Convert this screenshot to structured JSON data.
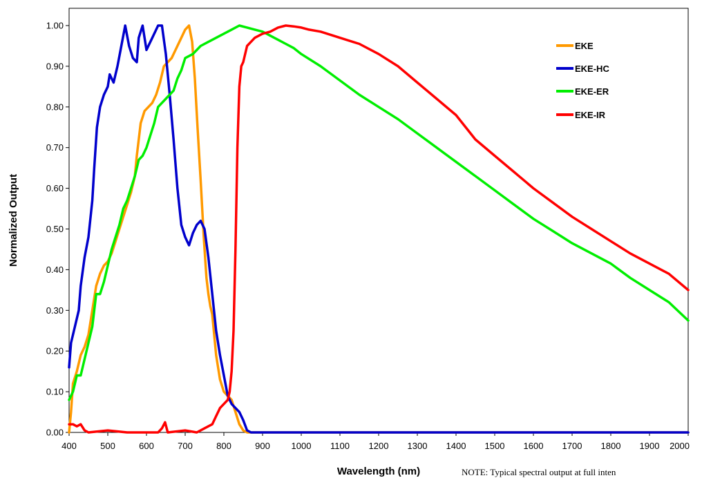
{
  "chart_data": {
    "type": "line",
    "xlabel": "Wavelength (nm)",
    "ylabel": "Normalized Output",
    "xlim": [
      400,
      2000
    ],
    "ylim": [
      0,
      1.05
    ],
    "x_ticks": [
      "400",
      "500",
      "600",
      "700",
      "800",
      "900",
      "1000",
      "1100",
      "1200",
      "1300",
      "1400",
      "1500",
      "1600",
      "1700",
      "1800",
      "1900",
      "2000"
    ],
    "y_ticks": [
      "0.00",
      "0.10",
      "0.20",
      "0.30",
      "0.40",
      "0.50",
      "0.60",
      "0.70",
      "0.80",
      "0.90",
      "1.00"
    ],
    "grid": false,
    "legend_position": "top-right",
    "series": [
      {
        "name": "EKE",
        "color": "#ff9900",
        "points": [
          [
            400,
            0.0
          ],
          [
            405,
            0.05
          ],
          [
            410,
            0.12
          ],
          [
            420,
            0.15
          ],
          [
            430,
            0.19
          ],
          [
            440,
            0.21
          ],
          [
            450,
            0.24
          ],
          [
            455,
            0.27
          ],
          [
            460,
            0.3
          ],
          [
            470,
            0.36
          ],
          [
            480,
            0.39
          ],
          [
            490,
            0.41
          ],
          [
            500,
            0.42
          ],
          [
            510,
            0.44
          ],
          [
            520,
            0.47
          ],
          [
            530,
            0.5
          ],
          [
            540,
            0.53
          ],
          [
            550,
            0.56
          ],
          [
            560,
            0.59
          ],
          [
            570,
            0.63
          ],
          [
            575,
            0.68
          ],
          [
            585,
            0.76
          ],
          [
            595,
            0.79
          ],
          [
            605,
            0.8
          ],
          [
            615,
            0.81
          ],
          [
            625,
            0.83
          ],
          [
            635,
            0.86
          ],
          [
            645,
            0.9
          ],
          [
            655,
            0.91
          ],
          [
            665,
            0.92
          ],
          [
            680,
            0.95
          ],
          [
            690,
            0.97
          ],
          [
            700,
            0.99
          ],
          [
            710,
            1.0
          ],
          [
            718,
            0.96
          ],
          [
            725,
            0.87
          ],
          [
            732,
            0.75
          ],
          [
            740,
            0.62
          ],
          [
            748,
            0.48
          ],
          [
            755,
            0.38
          ],
          [
            760,
            0.34
          ],
          [
            765,
            0.31
          ],
          [
            770,
            0.29
          ],
          [
            780,
            0.19
          ],
          [
            790,
            0.13
          ],
          [
            800,
            0.1
          ],
          [
            810,
            0.09
          ],
          [
            820,
            0.08
          ],
          [
            830,
            0.05
          ],
          [
            840,
            0.02
          ],
          [
            850,
            0.005
          ],
          [
            860,
            0.0
          ],
          [
            2000,
            0.0
          ]
        ]
      },
      {
        "name": "EKE-HC",
        "color": "#0000cc",
        "points": [
          [
            400,
            0.16
          ],
          [
            405,
            0.22
          ],
          [
            415,
            0.26
          ],
          [
            425,
            0.3
          ],
          [
            430,
            0.36
          ],
          [
            440,
            0.43
          ],
          [
            450,
            0.48
          ],
          [
            460,
            0.57
          ],
          [
            465,
            0.65
          ],
          [
            472,
            0.75
          ],
          [
            480,
            0.8
          ],
          [
            490,
            0.83
          ],
          [
            500,
            0.85
          ],
          [
            505,
            0.88
          ],
          [
            515,
            0.86
          ],
          [
            525,
            0.9
          ],
          [
            535,
            0.95
          ],
          [
            545,
            1.0
          ],
          [
            555,
            0.95
          ],
          [
            565,
            0.92
          ],
          [
            575,
            0.91
          ],
          [
            580,
            0.97
          ],
          [
            590,
            1.0
          ],
          [
            600,
            0.94
          ],
          [
            615,
            0.97
          ],
          [
            630,
            1.0
          ],
          [
            640,
            1.0
          ],
          [
            650,
            0.93
          ],
          [
            660,
            0.83
          ],
          [
            670,
            0.72
          ],
          [
            680,
            0.6
          ],
          [
            690,
            0.51
          ],
          [
            700,
            0.48
          ],
          [
            710,
            0.46
          ],
          [
            720,
            0.49
          ],
          [
            730,
            0.51
          ],
          [
            740,
            0.52
          ],
          [
            750,
            0.5
          ],
          [
            760,
            0.43
          ],
          [
            770,
            0.34
          ],
          [
            780,
            0.25
          ],
          [
            790,
            0.19
          ],
          [
            800,
            0.14
          ],
          [
            810,
            0.09
          ],
          [
            820,
            0.07
          ],
          [
            830,
            0.06
          ],
          [
            840,
            0.05
          ],
          [
            850,
            0.03
          ],
          [
            860,
            0.005
          ],
          [
            870,
            0.0
          ],
          [
            2000,
            0.0
          ]
        ]
      },
      {
        "name": "EKE-ER",
        "color": "#00ee00",
        "points": [
          [
            400,
            0.08
          ],
          [
            410,
            0.1
          ],
          [
            420,
            0.14
          ],
          [
            430,
            0.14
          ],
          [
            440,
            0.18
          ],
          [
            450,
            0.22
          ],
          [
            460,
            0.26
          ],
          [
            465,
            0.3
          ],
          [
            470,
            0.34
          ],
          [
            480,
            0.34
          ],
          [
            490,
            0.37
          ],
          [
            500,
            0.41
          ],
          [
            510,
            0.45
          ],
          [
            520,
            0.48
          ],
          [
            530,
            0.51
          ],
          [
            540,
            0.55
          ],
          [
            550,
            0.57
          ],
          [
            560,
            0.6
          ],
          [
            570,
            0.63
          ],
          [
            580,
            0.67
          ],
          [
            590,
            0.68
          ],
          [
            600,
            0.7
          ],
          [
            610,
            0.73
          ],
          [
            620,
            0.76
          ],
          [
            630,
            0.8
          ],
          [
            640,
            0.81
          ],
          [
            650,
            0.82
          ],
          [
            660,
            0.83
          ],
          [
            670,
            0.84
          ],
          [
            680,
            0.87
          ],
          [
            690,
            0.89
          ],
          [
            700,
            0.92
          ],
          [
            720,
            0.93
          ],
          [
            740,
            0.95
          ],
          [
            760,
            0.96
          ],
          [
            780,
            0.97
          ],
          [
            800,
            0.98
          ],
          [
            820,
            0.99
          ],
          [
            840,
            1.0
          ],
          [
            860,
            0.995
          ],
          [
            880,
            0.99
          ],
          [
            900,
            0.985
          ],
          [
            920,
            0.975
          ],
          [
            940,
            0.965
          ],
          [
            960,
            0.955
          ],
          [
            980,
            0.945
          ],
          [
            1000,
            0.93
          ],
          [
            1050,
            0.9
          ],
          [
            1100,
            0.865
          ],
          [
            1150,
            0.83
          ],
          [
            1200,
            0.8
          ],
          [
            1250,
            0.77
          ],
          [
            1300,
            0.735
          ],
          [
            1350,
            0.7
          ],
          [
            1400,
            0.665
          ],
          [
            1450,
            0.63
          ],
          [
            1500,
            0.595
          ],
          [
            1550,
            0.56
          ],
          [
            1600,
            0.525
          ],
          [
            1650,
            0.495
          ],
          [
            1700,
            0.465
          ],
          [
            1750,
            0.44
          ],
          [
            1800,
            0.415
          ],
          [
            1850,
            0.38
          ],
          [
            1900,
            0.35
          ],
          [
            1950,
            0.32
          ],
          [
            2000,
            0.275
          ]
        ]
      },
      {
        "name": "EKE-IR",
        "color": "#ff0000",
        "points": [
          [
            400,
            0.02
          ],
          [
            410,
            0.02
          ],
          [
            420,
            0.015
          ],
          [
            430,
            0.02
          ],
          [
            440,
            0.005
          ],
          [
            450,
            0.0
          ],
          [
            500,
            0.005
          ],
          [
            550,
            0.0
          ],
          [
            600,
            0.0
          ],
          [
            630,
            0.0
          ],
          [
            640,
            0.01
          ],
          [
            648,
            0.025
          ],
          [
            655,
            0.0
          ],
          [
            700,
            0.005
          ],
          [
            730,
            0.0
          ],
          [
            750,
            0.01
          ],
          [
            770,
            0.02
          ],
          [
            780,
            0.04
          ],
          [
            790,
            0.06
          ],
          [
            800,
            0.07
          ],
          [
            810,
            0.08
          ],
          [
            815,
            0.1
          ],
          [
            820,
            0.15
          ],
          [
            825,
            0.25
          ],
          [
            830,
            0.45
          ],
          [
            835,
            0.7
          ],
          [
            840,
            0.85
          ],
          [
            845,
            0.9
          ],
          [
            850,
            0.91
          ],
          [
            860,
            0.95
          ],
          [
            870,
            0.96
          ],
          [
            880,
            0.97
          ],
          [
            900,
            0.98
          ],
          [
            920,
            0.985
          ],
          [
            940,
            0.995
          ],
          [
            960,
            1.0
          ],
          [
            980,
            0.998
          ],
          [
            1000,
            0.995
          ],
          [
            1020,
            0.99
          ],
          [
            1050,
            0.985
          ],
          [
            1100,
            0.97
          ],
          [
            1150,
            0.955
          ],
          [
            1200,
            0.93
          ],
          [
            1250,
            0.9
          ],
          [
            1300,
            0.86
          ],
          [
            1350,
            0.82
          ],
          [
            1400,
            0.78
          ],
          [
            1450,
            0.72
          ],
          [
            1500,
            0.68
          ],
          [
            1550,
            0.64
          ],
          [
            1600,
            0.6
          ],
          [
            1650,
            0.565
          ],
          [
            1700,
            0.53
          ],
          [
            1750,
            0.5
          ],
          [
            1800,
            0.47
          ],
          [
            1850,
            0.44
          ],
          [
            1900,
            0.415
          ],
          [
            1950,
            0.39
          ],
          [
            2000,
            0.35
          ]
        ]
      }
    ]
  },
  "note": "NOTE: Typical spectral output at full inten"
}
